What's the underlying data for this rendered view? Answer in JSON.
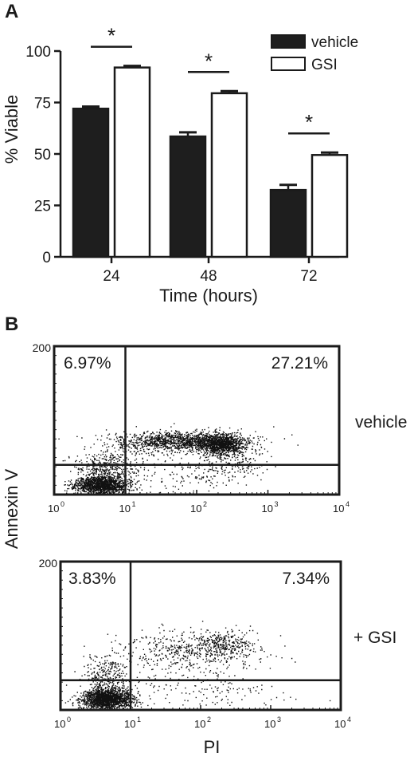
{
  "figure": {
    "panel_a_letter": "A",
    "panel_b_letter": "B"
  },
  "colors": {
    "vehicle": "#1e1e1e",
    "gsi": "#ffffff",
    "ink": "#1a1a1a"
  },
  "chart_data": [
    {
      "type": "bar",
      "panel": "A",
      "categories": [
        "24",
        "48",
        "72"
      ],
      "series": [
        {
          "name": "vehicle",
          "values": [
            72,
            58.5,
            32.5
          ],
          "errors": [
            1.0,
            2.0,
            2.5
          ],
          "fill": "#1e1e1e"
        },
        {
          "name": "GSI",
          "values": [
            92,
            79.5,
            49.5
          ],
          "errors": [
            0.8,
            1.0,
            1.2
          ],
          "fill": "#ffffff"
        }
      ],
      "significance": [
        "*",
        "*",
        "*"
      ],
      "xlabel": "Time (hours)",
      "ylabel": "% Viable",
      "ylim": [
        0,
        100
      ],
      "yticks": [
        "0",
        "25",
        "50",
        "75",
        "100"
      ],
      "legend": {
        "placement": "top-right",
        "entries": [
          "vehicle",
          "GSI"
        ]
      },
      "grid": false
    },
    {
      "type": "scatter",
      "panel": "B",
      "title": "vehicle",
      "xscale": "log",
      "xlim": [
        1,
        10000
      ],
      "ylim": [
        0,
        200
      ],
      "yticks": [
        "200"
      ],
      "xticks": [
        "0",
        "1",
        "2",
        "3",
        "4"
      ],
      "gate": {
        "x": 10,
        "y": 40
      },
      "quadrant_labels": {
        "upper_left": "6.97%",
        "upper_right": "27.21%"
      },
      "populations": [
        {
          "cx": 4.5,
          "cy": 13,
          "sx": 0.18,
          "sy": 6,
          "n": 1400
        },
        {
          "cx": 5.5,
          "cy": 35,
          "sx": 0.22,
          "sy": 12,
          "n": 420
        },
        {
          "cx": 60,
          "cy": 72,
          "sx": 0.45,
          "sy": 7,
          "n": 1300
        },
        {
          "cx": 220,
          "cy": 68,
          "sx": 0.16,
          "sy": 7,
          "n": 950
        },
        {
          "cx": 300,
          "cy": 45,
          "sx": 0.25,
          "sy": 15,
          "n": 220
        },
        {
          "cx": 40,
          "cy": 30,
          "sx": 0.5,
          "sy": 20,
          "n": 150
        }
      ]
    },
    {
      "type": "scatter",
      "panel": "B",
      "title": "+ GSI",
      "xscale": "log",
      "xlim": [
        1,
        10000
      ],
      "ylim": [
        0,
        200
      ],
      "yticks": [
        "200"
      ],
      "xticks": [
        "0",
        "1",
        "2",
        "3",
        "4"
      ],
      "gate": {
        "x": 10,
        "y": 40
      },
      "quadrant_labels": {
        "upper_left": "3.83%",
        "upper_right": "7.34%"
      },
      "populations": [
        {
          "cx": 4.5,
          "cy": 15,
          "sx": 0.18,
          "sy": 7,
          "n": 1700
        },
        {
          "cx": 4.5,
          "cy": 45,
          "sx": 0.18,
          "sy": 16,
          "n": 320
        },
        {
          "cx": 200,
          "cy": 88,
          "sx": 0.22,
          "sy": 9,
          "n": 300
        },
        {
          "cx": 60,
          "cy": 80,
          "sx": 0.5,
          "sy": 15,
          "n": 450
        },
        {
          "cx": 100,
          "cy": 28,
          "sx": 0.6,
          "sy": 12,
          "n": 150
        }
      ]
    }
  ],
  "flow_axes": {
    "xlabel": "PI",
    "ylabel": "Annexin V",
    "decade_base": "10"
  }
}
